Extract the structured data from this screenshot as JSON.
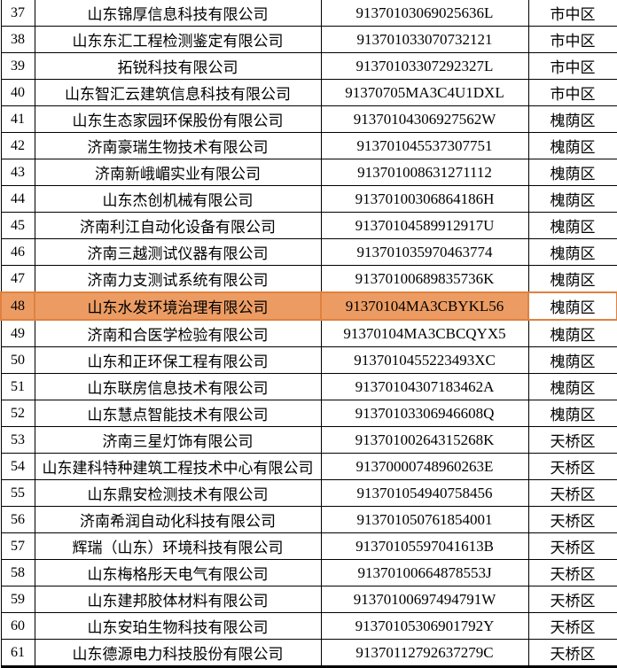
{
  "highlight": {
    "fill": "#EC9C63",
    "border": "#E0813F"
  },
  "table": {
    "rows": [
      {
        "no": "37",
        "company": "山东锦厚信息科技有限公司",
        "code": "91370103069025636L",
        "district": "市中区",
        "highlighted": false
      },
      {
        "no": "38",
        "company": "山东东汇工程检测鉴定有限公司",
        "code": "913701033070732121",
        "district": "市中区",
        "highlighted": false
      },
      {
        "no": "39",
        "company": "拓锐科技有限公司",
        "code": "91370103307292327L",
        "district": "市中区",
        "highlighted": false
      },
      {
        "no": "40",
        "company": "山东智汇云建筑信息科技有限公司",
        "code": "91370705MA3C4U1DXL",
        "district": "市中区",
        "highlighted": false
      },
      {
        "no": "41",
        "company": "山东生态家园环保股份有限公司",
        "code": "91370104306927562W",
        "district": "槐荫区",
        "highlighted": false
      },
      {
        "no": "42",
        "company": "济南豪瑞生物技术有限公司",
        "code": "913701045537307751",
        "district": "槐荫区",
        "highlighted": false
      },
      {
        "no": "43",
        "company": "济南新峨嵋实业有限公司",
        "code": "913701008631271112",
        "district": "槐荫区",
        "highlighted": false
      },
      {
        "no": "44",
        "company": "山东杰创机械有限公司",
        "code": "91370100306864186H",
        "district": "槐荫区",
        "highlighted": false
      },
      {
        "no": "45",
        "company": "济南利江自动化设备有限公司",
        "code": "91370104589912917U",
        "district": "槐荫区",
        "highlighted": false
      },
      {
        "no": "46",
        "company": "济南三越测试仪器有限公司",
        "code": "913701035970463774",
        "district": "槐荫区",
        "highlighted": false
      },
      {
        "no": "47",
        "company": "济南力支测试系统有限公司",
        "code": "91370100689835736K",
        "district": "槐荫区",
        "highlighted": false
      },
      {
        "no": "48",
        "company": "山东水发环境治理有限公司",
        "code": "91370104MA3CBYKL56",
        "district": "槐荫区",
        "highlighted": true
      },
      {
        "no": "49",
        "company": "济南和合医学检验有限公司",
        "code": "91370104MA3CBCQYX5",
        "district": "槐荫区",
        "highlighted": false
      },
      {
        "no": "50",
        "company": "山东和正环保工程有限公司",
        "code": "9137010455223493XC",
        "district": "槐荫区",
        "highlighted": false
      },
      {
        "no": "51",
        "company": "山东联房信息技术有限公司",
        "code": "91370104307183462A",
        "district": "槐荫区",
        "highlighted": false
      },
      {
        "no": "52",
        "company": "山东慧点智能技术有限公司",
        "code": "91370103306946608Q",
        "district": "槐荫区",
        "highlighted": false
      },
      {
        "no": "53",
        "company": "济南三星灯饰有限公司",
        "code": "91370100264315268K",
        "district": "天桥区",
        "highlighted": false
      },
      {
        "no": "54",
        "company": "山东建科特种建筑工程技术中心有限公司",
        "code": "91370000748960263E",
        "district": "天桥区",
        "highlighted": false
      },
      {
        "no": "55",
        "company": "山东鼎安检测技术有限公司",
        "code": "913701054940758456",
        "district": "天桥区",
        "highlighted": false
      },
      {
        "no": "56",
        "company": "济南希润自动化科技有限公司",
        "code": "913701050761854001",
        "district": "天桥区",
        "highlighted": false
      },
      {
        "no": "57",
        "company": "辉瑞（山东）环境科技有限公司",
        "code": "91370105597041613B",
        "district": "天桥区",
        "highlighted": false
      },
      {
        "no": "58",
        "company": "山东梅格彤天电气有限公司",
        "code": "91370100664878553J",
        "district": "天桥区",
        "highlighted": false
      },
      {
        "no": "59",
        "company": "山东建邦胶体材料有限公司",
        "code": "91370100697494791W",
        "district": "天桥区",
        "highlighted": false
      },
      {
        "no": "60",
        "company": "山东安珀生物科技有限公司",
        "code": "91370105306901792Y",
        "district": "天桥区",
        "highlighted": false
      },
      {
        "no": "61",
        "company": "山东德源电力科技股份有限公司",
        "code": "91370112792637279C",
        "district": "天桥区",
        "highlighted": false
      }
    ]
  }
}
